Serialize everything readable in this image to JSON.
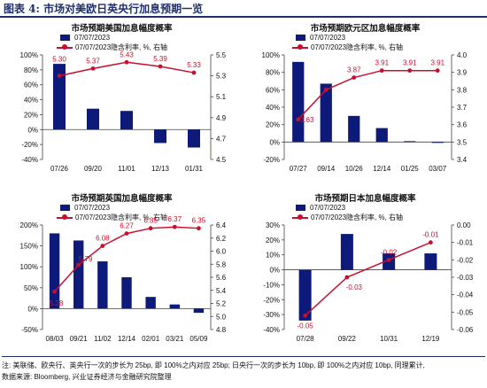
{
  "header": {
    "title": "图表 4:  市场对美欧日英央行加息预期一览"
  },
  "colors": {
    "bar": "#0d1a7a",
    "line": "#c8102e",
    "accent": "#1f2f6d"
  },
  "footer": {
    "note": "注:  美联储、欧央行、英央行一次的步长为 25bp, 即 100%之内对应 25bp;  日央行一次的步长为 10bp, 即 100%之内对应 10bp, 同理累计,",
    "source": "数据来源:  Bloomberg, 兴业证券经济与金融研究院整理"
  },
  "chart_data": [
    {
      "type": "bar",
      "title": "市场预期美国加息幅度概率",
      "legend": [
        "07/07/2023",
        "07/07/2023隐含利率, %, 右轴"
      ],
      "categories": [
        "07/26",
        "09/20",
        "11/01",
        "12/13",
        "01/31"
      ],
      "series": [
        {
          "name": "07/07/2023",
          "type": "bar",
          "axis": "left",
          "values": [
            88,
            28,
            25,
            -18,
            -24
          ]
        },
        {
          "name": "07/07/2023隐含利率, %, 右轴",
          "type": "line",
          "axis": "right",
          "values": [
            5.3,
            5.37,
            5.43,
            5.39,
            5.33
          ],
          "labels": [
            "5.30",
            "5.37",
            "5.43",
            "5.39",
            "5.33"
          ]
        }
      ],
      "y_left": {
        "ylim": [
          -40,
          100
        ],
        "ticks": [
          -40,
          -20,
          0,
          20,
          40,
          60,
          80,
          100
        ],
        "tick_labels": [
          "-40%",
          "-20%",
          "0%",
          "20%",
          "40%",
          "60%",
          "80%",
          "100%"
        ]
      },
      "y_right": {
        "ylim": [
          4.5,
          5.5
        ],
        "ticks": [
          4.5,
          4.7,
          4.9,
          5.1,
          5.3,
          5.5
        ],
        "tick_labels": [
          "4.5",
          "4.7",
          "4.9",
          "5.1",
          "5.3",
          "5.5"
        ]
      }
    },
    {
      "type": "bar",
      "title": "市场预期欧元区加息幅度概率",
      "legend": [
        "07/07/2023",
        "07/07/2023隐含利率, %, 右轴"
      ],
      "categories": [
        "07/27",
        "09/14",
        "10/26",
        "12/14",
        "01/25",
        "03/07"
      ],
      "series": [
        {
          "name": "07/07/2023",
          "type": "bar",
          "axis": "left",
          "values": [
            92,
            67,
            30,
            16,
            1,
            -1
          ]
        },
        {
          "name": "07/07/2023隐含利率, %, 右轴",
          "type": "line",
          "axis": "right",
          "values": [
            3.63,
            3.8,
            3.87,
            3.91,
            3.91,
            3.91
          ],
          "labels": [
            "3.63",
            "",
            "3.87",
            "3.91",
            "3.91",
            "3.91"
          ]
        }
      ],
      "y_left": {
        "ylim": [
          -20,
          100
        ],
        "ticks": [
          -20,
          0,
          20,
          40,
          60,
          80,
          100
        ],
        "tick_labels": [
          "-20%",
          "0%",
          "20%",
          "40%",
          "60%",
          "80%",
          "100%"
        ]
      },
      "y_right": {
        "ylim": [
          3.4,
          4.0
        ],
        "ticks": [
          3.4,
          3.5,
          3.6,
          3.7,
          3.8,
          3.9,
          4.0
        ],
        "tick_labels": [
          "3.4",
          "3.5",
          "3.6",
          "3.7",
          "3.8",
          "3.9",
          "4.0"
        ]
      }
    },
    {
      "type": "bar",
      "title": "市场预期英国加息幅度概率",
      "legend": [
        "07/07/2023",
        "07/07/2023隐含利率, %, 右轴"
      ],
      "categories": [
        "08/03",
        "09/21",
        "11/02",
        "12/14",
        "02/01",
        "03/21",
        "05/09"
      ],
      "series": [
        {
          "name": "07/07/2023",
          "type": "bar",
          "axis": "left",
          "values": [
            180,
            163,
            113,
            75,
            28,
            10,
            -10
          ]
        },
        {
          "name": "07/07/2023隐含利率, %, 右轴",
          "type": "line",
          "axis": "right",
          "values": [
            5.38,
            5.79,
            6.08,
            6.27,
            6.35,
            6.37,
            6.35
          ],
          "labels": [
            "5.38",
            "5.79",
            "6.08",
            "6.27",
            "6.35",
            "6.37",
            "6.35"
          ]
        }
      ],
      "y_left": {
        "ylim": [
          -50,
          200
        ],
        "ticks": [
          -50,
          0,
          50,
          100,
          150,
          200
        ],
        "tick_labels": [
          "-50%",
          "0%",
          "50%",
          "100%",
          "150%",
          "200%"
        ]
      },
      "y_right": {
        "ylim": [
          4.8,
          6.4
        ],
        "ticks": [
          4.8,
          5.0,
          5.2,
          5.4,
          5.6,
          5.8,
          6.0,
          6.2,
          6.4
        ],
        "tick_labels": [
          "4.8",
          "5.0",
          "5.2",
          "5.4",
          "5.6",
          "5.8",
          "6.0",
          "6.2",
          "6.4"
        ]
      }
    },
    {
      "type": "bar",
      "title": "市场预期日本加息幅度概率",
      "legend": [
        "07/07/2023",
        "07/07/2023隐含利率, %, 右轴"
      ],
      "categories": [
        "07/28",
        "09/22",
        "10/31",
        "12/19"
      ],
      "series": [
        {
          "name": "07/07/2023",
          "type": "bar",
          "axis": "left",
          "values": [
            -34,
            24,
            11,
            11
          ]
        },
        {
          "name": "07/07/2023隐含利率, %, 右轴",
          "type": "line",
          "axis": "right",
          "values": [
            -0.052,
            -0.03,
            -0.02,
            -0.01
          ],
          "labels": [
            "-0.05",
            "-0.03",
            "-0.02",
            "-0.01"
          ]
        }
      ],
      "y_left": {
        "ylim": [
          -40,
          30
        ],
        "ticks": [
          -40,
          -30,
          -20,
          -10,
          0,
          10,
          20,
          30
        ],
        "tick_labels": [
          "-40%",
          "-30%",
          "-20%",
          "-10%",
          "0%",
          "10%",
          "20%",
          "30%"
        ]
      },
      "y_right": {
        "ylim": [
          -0.06,
          0.0
        ],
        "ticks": [
          -0.06,
          -0.05,
          -0.04,
          -0.03,
          -0.02,
          -0.01,
          0.0
        ],
        "tick_labels": [
          "-0.06",
          "-0.05",
          "-0.04",
          "-0.03",
          "-0.02",
          "-0.01",
          "0.00"
        ]
      }
    }
  ]
}
